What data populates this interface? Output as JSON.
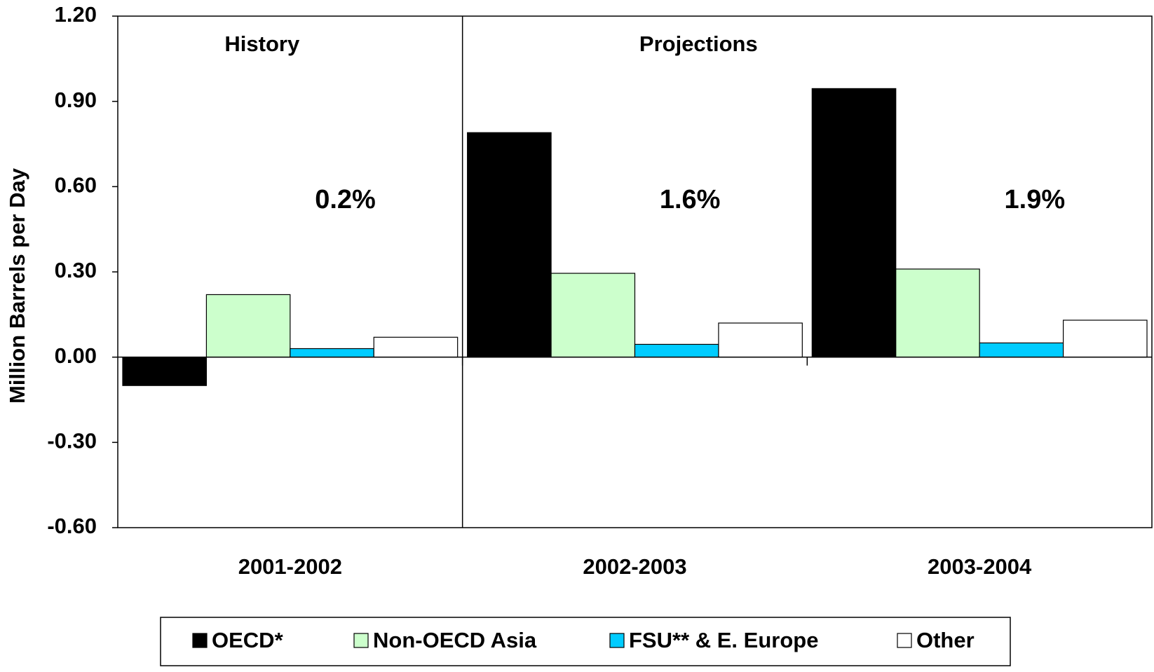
{
  "chart_data": {
    "type": "bar",
    "y_axis_label": "Million Barrels per Day",
    "categories": [
      "2001-2002",
      "2002-2003",
      "2003-2004"
    ],
    "series": [
      {
        "name": "OECD*",
        "color": "#000000",
        "values": [
          -0.1,
          0.79,
          0.945
        ]
      },
      {
        "name": "Non-OECD Asia",
        "color": "#ccffcc",
        "values": [
          0.22,
          0.295,
          0.31
        ]
      },
      {
        "name": "FSU** & E. Europe",
        "color": "#00ccff",
        "values": [
          0.03,
          0.045,
          0.05
        ]
      },
      {
        "name": "Other",
        "color": "#ffffff",
        "values": [
          0.07,
          0.12,
          0.13
        ]
      }
    ],
    "period_labels": [
      "History",
      "Projections"
    ],
    "growth_labels": [
      "0.2%",
      "1.6%",
      "1.9%"
    ],
    "ylim": [
      -0.6,
      1.2
    ],
    "yticks": [
      {
        "value": 1.2,
        "label": "1.20"
      },
      {
        "value": 0.9,
        "label": "0.90"
      },
      {
        "value": 0.6,
        "label": "0.60"
      },
      {
        "value": 0.3,
        "label": "0.30"
      },
      {
        "value": 0,
        "label": "0.00"
      },
      {
        "value": -0.3,
        "label": "-0.30"
      },
      {
        "value": -0.6,
        "label": "-0.60"
      }
    ],
    "grid": false,
    "legend": "bottom"
  }
}
